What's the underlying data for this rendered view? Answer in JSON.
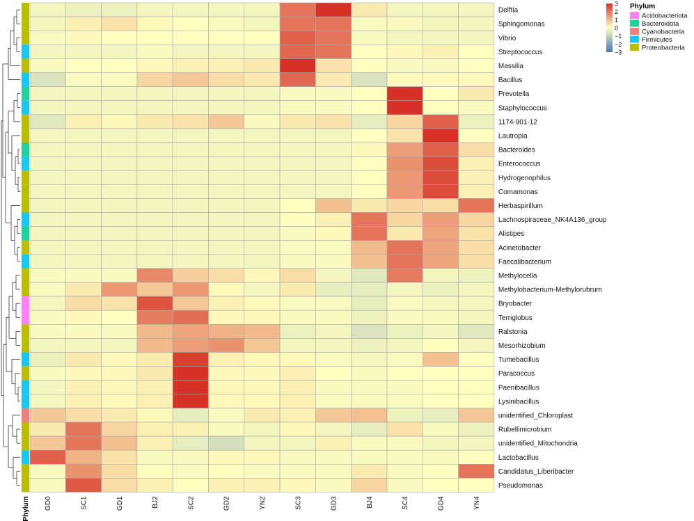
{
  "chart_data": {
    "type": "heatmap",
    "title": "",
    "columns": [
      "GD0",
      "SC1",
      "GD1",
      "BJ2",
      "SC2",
      "GD2",
      "YN2",
      "SC3",
      "GD3",
      "BJ4",
      "SC4",
      "GD4",
      "YN4"
    ],
    "rows": [
      "Delftia",
      "Sphingomonas",
      "Vibrio",
      "Streptococcus",
      "Massilia",
      "Bacillus",
      "Prevotella",
      "Staphylococcus",
      "1174-901-12",
      "Lautropia",
      "Bacteroides",
      "Enterococcus",
      "Hydrogenophilus",
      "Comamonas",
      "Herbaspirillum",
      "Lachnospiraceae_NK4A136_group",
      "Alistipes",
      "Acinetobacter",
      "Faecalibacterium",
      "Methylocella",
      "Methylobacterium-Methylorubrum",
      "Bryobacter",
      "Terriglobus",
      "Ralstonia",
      "Mesorhizobium",
      "Tumebacillus",
      "Paracoccus",
      "Paenibacillus",
      "Lysinibacillus",
      "unidentified_Chloroplast",
      "Rubellimicrobium",
      "unidentified_Mitochondria",
      "Lactobacillus",
      "Candidatus_Liberibacter",
      "Pseudomonas"
    ],
    "phylum": [
      "Proteobacteria",
      "Proteobacteria",
      "Proteobacteria",
      "Firmicutes",
      "Proteobacteria",
      "Firmicutes",
      "Bacteroidota",
      "Firmicutes",
      "Proteobacteria",
      "Proteobacteria",
      "Bacteroidota",
      "Firmicutes",
      "Proteobacteria",
      "Proteobacteria",
      "Proteobacteria",
      "Firmicutes",
      "Bacteroidota",
      "Proteobacteria",
      "Firmicutes",
      "Proteobacteria",
      "Proteobacteria",
      "Acidobacteriota",
      "Acidobacteriota",
      "Proteobacteria",
      "Proteobacteria",
      "Firmicutes",
      "Proteobacteria",
      "Firmicutes",
      "Firmicutes",
      "Cyanobacteria",
      "Proteobacteria",
      "Proteobacteria",
      "Firmicutes",
      "Proteobacteria",
      "Proteobacteria"
    ],
    "values": [
      [
        -0.2,
        -0.3,
        -0.3,
        -0.2,
        -0.2,
        -0.2,
        -0.2,
        2.0,
        3.0,
        0.3,
        -0.2,
        -0.2,
        -0.2
      ],
      [
        -0.2,
        0.2,
        0.4,
        0.1,
        0.0,
        -0.1,
        -0.2,
        2.0,
        2.0,
        -0.1,
        -0.1,
        -0.2,
        -0.2
      ],
      [
        -0.1,
        0.1,
        0.0,
        0.0,
        0.0,
        0.0,
        0.0,
        2.3,
        2.0,
        -0.1,
        -0.2,
        -0.2,
        -0.2
      ],
      [
        -0.2,
        -0.2,
        -0.2,
        -0.1,
        -0.2,
        -0.2,
        -0.2,
        2.2,
        2.0,
        0.0,
        0.1,
        0.2,
        0.0
      ],
      [
        -0.1,
        0.0,
        0.0,
        0.1,
        0.2,
        0.2,
        0.3,
        3.0,
        0.4,
        0.0,
        -0.1,
        -0.1,
        0.0
      ],
      [
        -0.6,
        -0.1,
        -0.1,
        0.6,
        0.8,
        0.5,
        0.3,
        2.2,
        0.3,
        -0.6,
        0.1,
        0.1,
        0.1
      ],
      [
        -0.2,
        -0.2,
        -0.2,
        -0.2,
        -0.2,
        -0.2,
        -0.2,
        -0.1,
        -0.1,
        0.0,
        3.0,
        0.0,
        0.3
      ],
      [
        -0.2,
        -0.2,
        -0.2,
        -0.2,
        -0.2,
        -0.2,
        -0.2,
        -0.1,
        -0.1,
        0.0,
        3.0,
        0.0,
        -0.1
      ],
      [
        -0.5,
        0.2,
        0.1,
        0.3,
        0.4,
        0.8,
        -0.1,
        0.3,
        0.4,
        -0.4,
        0.6,
        2.3,
        -0.3
      ],
      [
        -0.2,
        -0.2,
        -0.2,
        -0.2,
        -0.2,
        -0.2,
        -0.2,
        -0.2,
        -0.2,
        0.0,
        0.4,
        3.0,
        0.0
      ],
      [
        -0.2,
        -0.2,
        -0.2,
        -0.2,
        -0.2,
        -0.2,
        -0.2,
        -0.2,
        -0.2,
        0.1,
        1.4,
        2.3,
        0.5
      ],
      [
        -0.2,
        -0.2,
        -0.2,
        -0.2,
        -0.2,
        -0.2,
        -0.2,
        -0.2,
        -0.2,
        0.0,
        1.6,
        2.6,
        0.2
      ],
      [
        -0.2,
        -0.2,
        -0.2,
        -0.2,
        -0.2,
        -0.2,
        -0.2,
        -0.2,
        -0.2,
        0.0,
        1.5,
        2.6,
        0.2
      ],
      [
        -0.2,
        -0.2,
        -0.2,
        -0.2,
        -0.2,
        -0.2,
        -0.2,
        -0.2,
        -0.2,
        0.0,
        1.5,
        2.6,
        0.2
      ],
      [
        -0.2,
        -0.2,
        -0.2,
        -0.2,
        -0.2,
        -0.2,
        -0.2,
        0.0,
        0.9,
        0.3,
        0.6,
        0.5,
        2.0
      ],
      [
        -0.2,
        -0.2,
        -0.2,
        -0.2,
        -0.2,
        -0.2,
        -0.2,
        0.0,
        0.2,
        2.0,
        0.6,
        1.4,
        0.6
      ],
      [
        -0.2,
        -0.2,
        -0.2,
        -0.2,
        -0.2,
        -0.2,
        -0.2,
        -0.1,
        0.1,
        2.0,
        0.3,
        1.3,
        0.4
      ],
      [
        -0.2,
        -0.2,
        -0.2,
        -0.2,
        -0.2,
        -0.2,
        -0.2,
        -0.1,
        -0.1,
        1.0,
        2.0,
        1.3,
        0.5
      ],
      [
        -0.2,
        -0.2,
        -0.2,
        -0.2,
        -0.2,
        -0.2,
        -0.2,
        -0.1,
        -0.1,
        0.9,
        2.0,
        1.3,
        0.5
      ],
      [
        -0.1,
        -0.1,
        -0.1,
        1.7,
        0.7,
        0.5,
        0.1,
        0.5,
        -0.2,
        -0.5,
        1.9,
        -0.2,
        -0.3
      ],
      [
        -0.1,
        0.3,
        1.5,
        0.8,
        1.5,
        0.1,
        -0.2,
        0.3,
        -0.4,
        -0.4,
        -0.2,
        -0.3,
        -0.2
      ],
      [
        -0.2,
        0.5,
        0.4,
        2.5,
        0.8,
        0.2,
        0.1,
        -0.1,
        -0.1,
        -0.4,
        -0.1,
        -0.2,
        -0.2
      ],
      [
        -0.1,
        0.1,
        0.0,
        1.9,
        2.1,
        0.1,
        0.1,
        -0.1,
        -0.1,
        -0.3,
        -0.1,
        -0.1,
        -0.2
      ],
      [
        -0.1,
        -0.1,
        -0.1,
        1.0,
        1.3,
        1.1,
        1.0,
        -0.3,
        -0.2,
        -0.6,
        -0.3,
        -0.2,
        -0.5
      ],
      [
        -0.2,
        -0.2,
        -0.2,
        1.0,
        1.4,
        1.6,
        0.8,
        -0.2,
        -0.2,
        -0.3,
        -0.2,
        0.0,
        -0.2
      ],
      [
        -0.3,
        0.3,
        0.1,
        0.3,
        2.8,
        0.2,
        0.1,
        0.1,
        -0.1,
        -0.2,
        -0.1,
        0.9,
        0.0
      ],
      [
        -0.1,
        0.1,
        0.1,
        0.3,
        3.0,
        0.1,
        0.1,
        0.2,
        0.0,
        -0.1,
        0.0,
        0.0,
        0.0
      ],
      [
        -0.2,
        0.2,
        0.1,
        0.2,
        3.0,
        0.1,
        0.1,
        0.2,
        -0.1,
        -0.1,
        -0.1,
        0.0,
        0.0
      ],
      [
        -0.2,
        0.2,
        0.1,
        0.2,
        3.0,
        0.1,
        0.1,
        0.2,
        -0.1,
        -0.1,
        -0.1,
        0.0,
        0.0
      ],
      [
        0.8,
        0.5,
        0.3,
        0.1,
        -0.4,
        -0.1,
        0.3,
        0.2,
        0.8,
        0.9,
        -0.3,
        -0.4,
        0.8
      ],
      [
        0.3,
        2.0,
        0.6,
        0.2,
        0.2,
        -0.1,
        -0.2,
        0.1,
        -0.2,
        -0.4,
        0.4,
        -0.1,
        -0.3
      ],
      [
        0.8,
        2.0,
        0.9,
        0.2,
        -0.4,
        -0.7,
        -0.2,
        -0.2,
        0.2,
        -0.1,
        -0.1,
        -0.2,
        -0.2
      ],
      [
        2.3,
        1.1,
        0.4,
        -0.1,
        -0.1,
        0.1,
        0.1,
        -0.1,
        -0.1,
        -0.1,
        -0.1,
        -0.1,
        0.0
      ],
      [
        -0.1,
        1.6,
        0.5,
        0.0,
        -0.1,
        0.0,
        -0.1,
        -0.1,
        -0.1,
        0.3,
        -0.1,
        0.0,
        2.0
      ],
      [
        -0.1,
        2.4,
        0.5,
        0.2,
        0.0,
        0.2,
        0.2,
        0.1,
        -0.1,
        0.6,
        -0.1,
        0.0,
        0.0
      ]
    ],
    "annotation_label": "Phylum",
    "legend": {
      "scale_ticks": [
        3,
        2,
        1,
        0,
        -1,
        -2,
        -3
      ],
      "scale_tick_labels": [
        "3",
        "2",
        "1",
        "0",
        "−1",
        "−2",
        "−3"
      ],
      "scale_range": [
        -3,
        3
      ],
      "color_low": "#4575b4",
      "color_mid": "#ffffbf",
      "color_high": "#d73027",
      "phylum_title": "Phylum",
      "phylum_entries": [
        {
          "name": "Acidobacteriota",
          "color": "#ff7ff6"
        },
        {
          "name": "Bacteroidota",
          "color": "#20d19b"
        },
        {
          "name": "Cyanobacteria",
          "color": "#f08080"
        },
        {
          "name": "Firmicutes",
          "color": "#17c8f2"
        },
        {
          "name": "Proteobacteria",
          "color": "#bcbc00"
        }
      ]
    },
    "dendrogram": "row clustering tree on left",
    "grid": true
  }
}
